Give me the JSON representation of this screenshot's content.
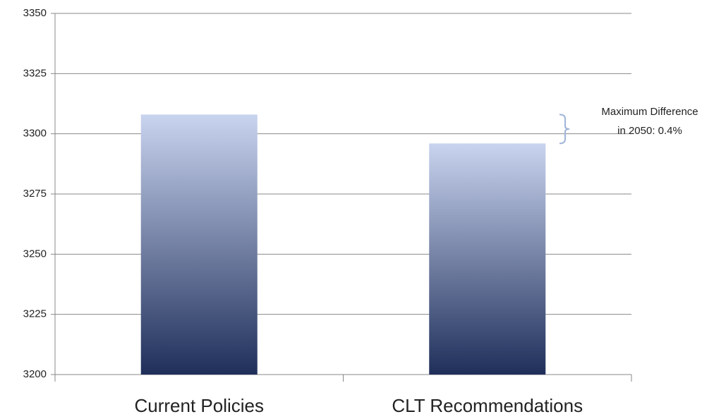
{
  "chart_data": {
    "type": "bar",
    "categories": [
      "Current Policies",
      "CLT Recommendations"
    ],
    "values": [
      3308,
      3296
    ],
    "color": [
      "#c9d4ef",
      "#1f2f5a"
    ],
    "ylim": [
      3200,
      3350
    ],
    "yticks": [
      3200,
      3225,
      3250,
      3275,
      3300,
      3325,
      3350
    ],
    "grid": true,
    "annotation": [
      "Maximum Difference",
      "in 2050: 0.4%"
    ]
  }
}
